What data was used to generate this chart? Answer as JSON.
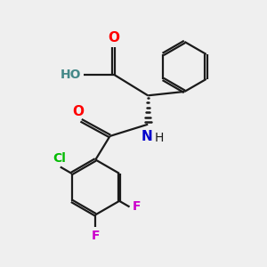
{
  "bg_color": "#efefef",
  "bond_color": "#1a1a1a",
  "atom_colors": {
    "O": "#ff0000",
    "N": "#0000cc",
    "Cl": "#00bb00",
    "F": "#cc00cc",
    "H_teal": "#448888",
    "C": "#1a1a1a"
  },
  "figsize": [
    3.0,
    3.0
  ],
  "dpi": 100
}
